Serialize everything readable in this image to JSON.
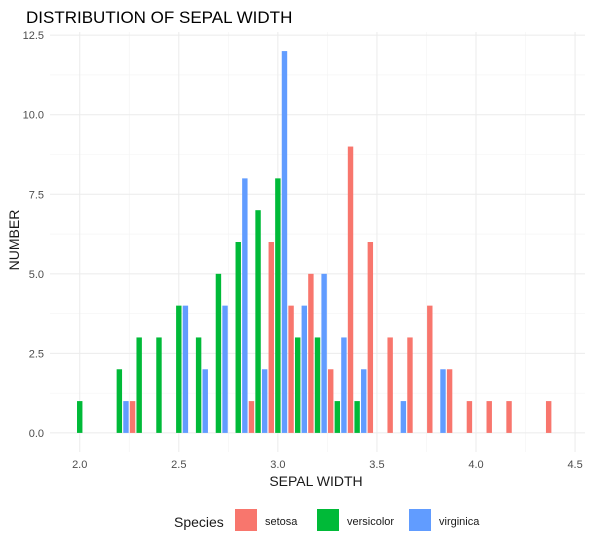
{
  "chart_data": {
    "type": "bar",
    "title": "DISTRIBUTION OF SEPAL WIDTH",
    "xlabel": "SEPAL WIDTH",
    "ylabel": "NUMBER",
    "xlim": [
      1.85,
      4.55
    ],
    "ylim": [
      -0.6,
      12.6
    ],
    "x_ticks": [
      2.0,
      2.5,
      3.0,
      3.5,
      4.0,
      4.5
    ],
    "x_tick_labels": [
      "2.0",
      "2.5",
      "3.0",
      "3.5",
      "4.0",
      "4.5"
    ],
    "y_ticks": [
      0,
      2.5,
      5,
      7.5,
      10,
      12.5
    ],
    "y_tick_labels": [
      "0.0",
      "2.5",
      "5.0",
      "7.5",
      "10.0",
      "12.5"
    ],
    "grid": true,
    "legend": {
      "title": "Species",
      "position": "bottom",
      "entries": [
        "setosa",
        "versicolor",
        "virginica"
      ]
    },
    "series": [
      {
        "name": "setosa",
        "color": "#F8766D",
        "points": [
          [
            2.3,
            1
          ],
          [
            2.9,
            1
          ],
          [
            3.0,
            6
          ],
          [
            3.1,
            4
          ],
          [
            3.2,
            5
          ],
          [
            3.3,
            2
          ],
          [
            3.4,
            9
          ],
          [
            3.5,
            6
          ],
          [
            3.6,
            3
          ],
          [
            3.7,
            3
          ],
          [
            3.8,
            4
          ],
          [
            3.9,
            2
          ],
          [
            4.0,
            1
          ],
          [
            4.1,
            1
          ],
          [
            4.2,
            1
          ],
          [
            4.4,
            1
          ]
        ]
      },
      {
        "name": "versicolor",
        "color": "#00BA38",
        "points": [
          [
            2.0,
            1
          ],
          [
            2.2,
            2
          ],
          [
            2.3,
            3
          ],
          [
            2.4,
            3
          ],
          [
            2.5,
            4
          ],
          [
            2.6,
            3
          ],
          [
            2.7,
            5
          ],
          [
            2.8,
            6
          ],
          [
            2.9,
            7
          ],
          [
            3.0,
            8
          ],
          [
            3.1,
            3
          ],
          [
            3.2,
            3
          ],
          [
            3.3,
            1
          ],
          [
            3.4,
            1
          ]
        ]
      },
      {
        "name": "virginica",
        "color": "#619CFF",
        "points": [
          [
            2.2,
            1
          ],
          [
            2.5,
            4
          ],
          [
            2.6,
            2
          ],
          [
            2.7,
            4
          ],
          [
            2.8,
            8
          ],
          [
            2.9,
            2
          ],
          [
            3.0,
            12
          ],
          [
            3.1,
            4
          ],
          [
            3.2,
            5
          ],
          [
            3.3,
            3
          ],
          [
            3.4,
            2
          ],
          [
            3.6,
            1
          ],
          [
            3.8,
            2
          ]
        ]
      }
    ]
  }
}
